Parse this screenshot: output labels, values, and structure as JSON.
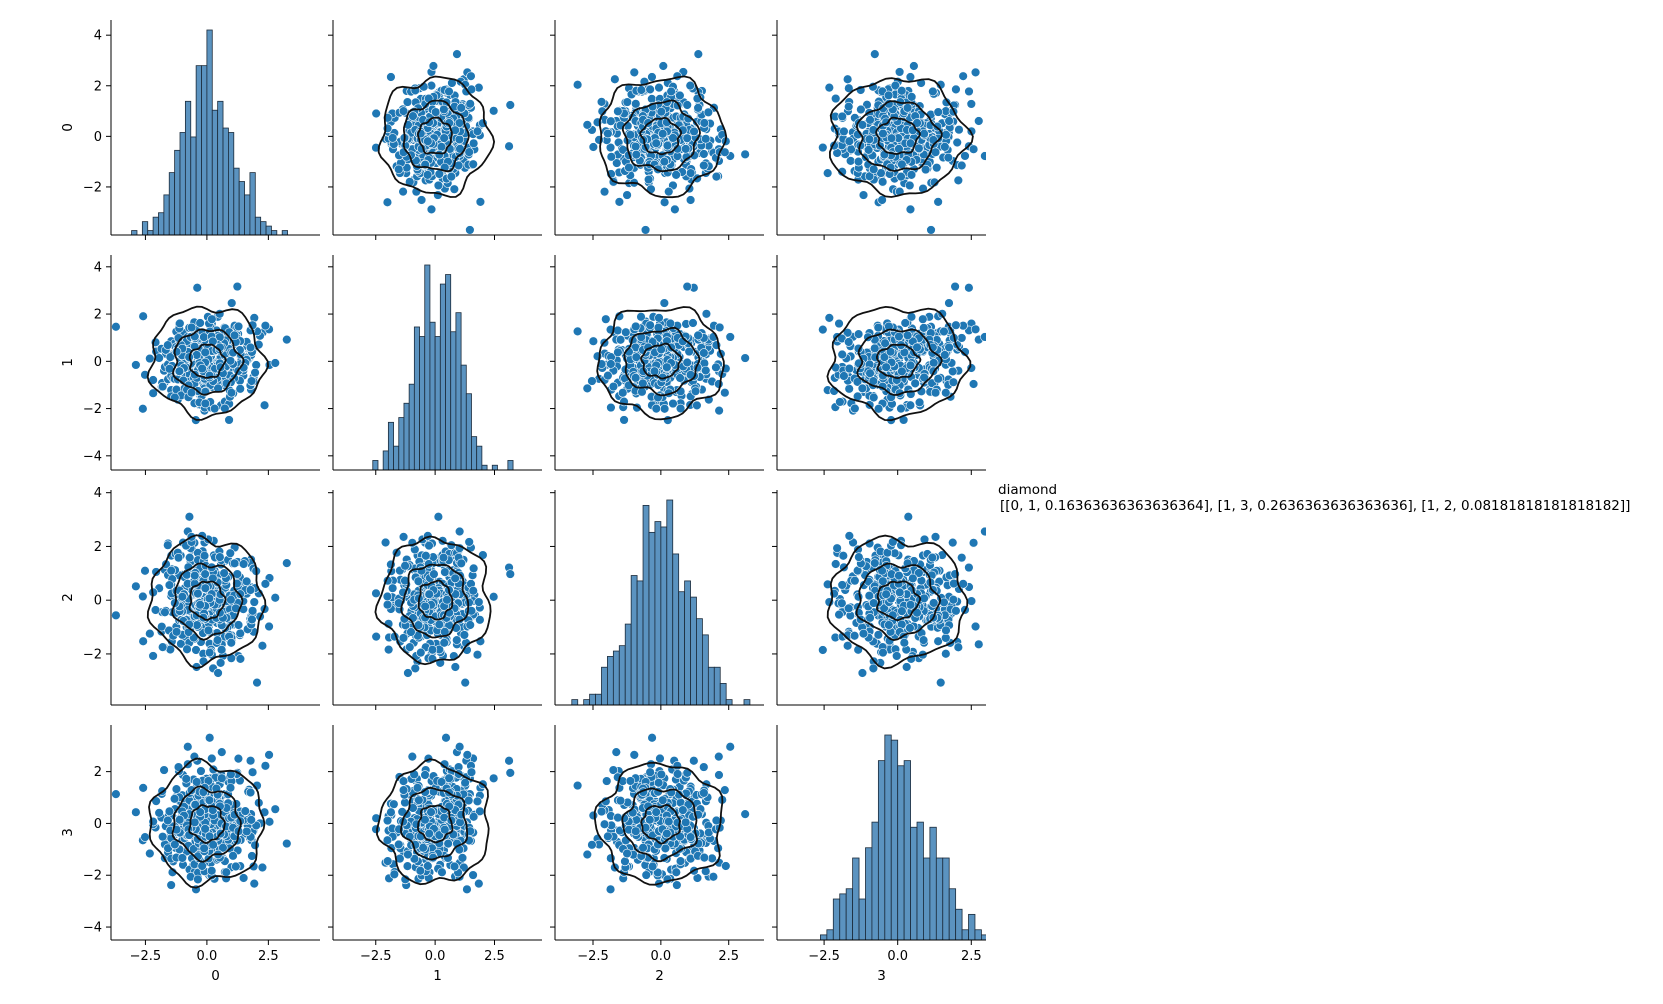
{
  "figure": {
    "type": "pairplot",
    "legend": {
      "title": "diamond",
      "text": "[[0, 1, 0.16363636363636364], [1, 3, 0.2636363636363636], [1, 2, 0.08181818181818182]]"
    },
    "colors": {
      "points": "#1f77b4",
      "point_edge": "#ffffff",
      "bars": "#5b93c0",
      "bar_edge": "#1b2b3b",
      "contour": "#111111",
      "axis": "#000000"
    }
  },
  "chart_data": {
    "type": "scatter",
    "layout": "pairplot-4x4",
    "variables": [
      "0",
      "1",
      "2",
      "3"
    ],
    "diagonal": "histogram",
    "offdiagonal": "scatter with kde contour (3 levels)",
    "x_limits": {
      "0": [
        -3.9,
        4.6
      ],
      "1": [
        -4.3,
        4.5
      ],
      "2": [
        -3.9,
        3.8
      ],
      "3": [
        -4.1,
        3.0
      ]
    },
    "y_limits": {
      "0": [
        -3.9,
        4.6
      ],
      "1": [
        -4.6,
        4.5
      ],
      "2": [
        -3.9,
        4.1
      ],
      "3": [
        -4.5,
        3.8
      ]
    },
    "x_ticks": {
      "0": [
        "−2.5",
        "0.0",
        "2.5"
      ],
      "1": [
        "−2.5",
        "0.0",
        "2.5"
      ],
      "2": [
        "−2.5",
        "0.0",
        "2.5"
      ],
      "3": [
        "−2.5",
        "0.0",
        "2.5"
      ]
    },
    "y_ticks": {
      "0": [
        "−2",
        "0",
        "2",
        "4"
      ],
      "1": [
        "−4",
        "−2",
        "0",
        "2",
        "4"
      ],
      "2": [
        "−2",
        "0",
        "2",
        "4"
      ],
      "3": [
        "−4",
        "−2",
        "0",
        "2"
      ]
    },
    "x_tick_values": [
      -2.5,
      0.0,
      2.5
    ],
    "y_tick_values": {
      "0": [
        -2,
        0,
        2,
        4
      ],
      "1": [
        -4,
        -2,
        0,
        2,
        4
      ],
      "2": [
        -2,
        0,
        2,
        4
      ],
      "3": [
        -4,
        -2,
        0,
        2
      ]
    },
    "distribution": {
      "mean": 0,
      "std": 1,
      "n_points_shown": 420
    },
    "correlations": [
      {
        "pair": [
          "0",
          "1"
        ],
        "r": 0.16363636363636364
      },
      {
        "pair": [
          "1",
          "3"
        ],
        "r": 0.2636363636363636
      },
      {
        "pair": [
          "1",
          "2"
        ],
        "r": 0.08181818181818182
      }
    ],
    "histogram": {
      "bins": 32,
      "range": [
        -3.5,
        3.5
      ]
    },
    "contour_radii_sigma": [
      0.7,
      1.35,
      2.3
    ],
    "grid": false,
    "legend_position": "right"
  }
}
